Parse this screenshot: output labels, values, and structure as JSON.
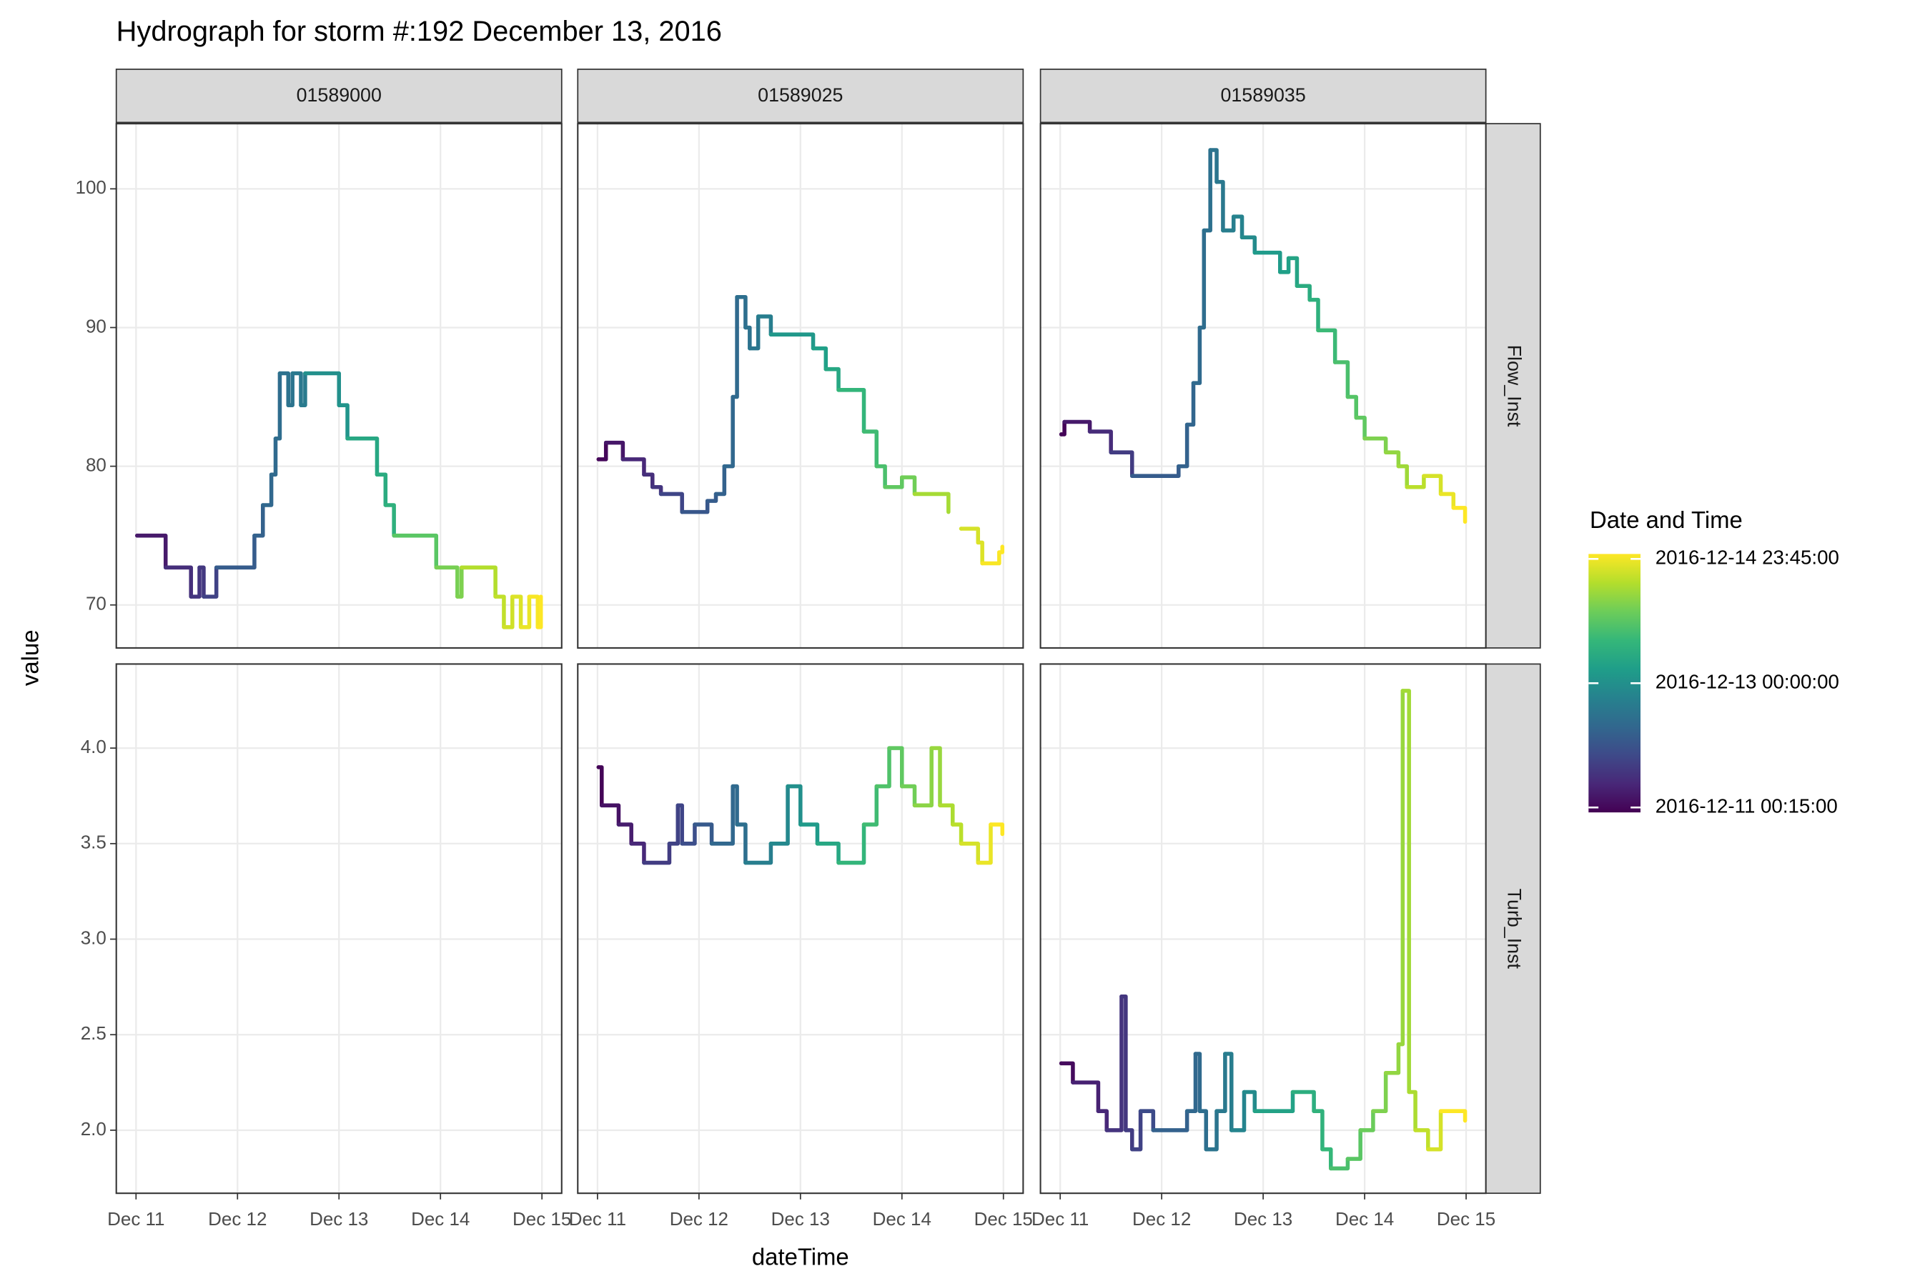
{
  "chart_data": {
    "type": "line",
    "title": "Hydrograph for storm #:192   December 13, 2016",
    "x_label": "dateTime",
    "y_label": "value",
    "columns": [
      "01589000",
      "01589025",
      "01589035"
    ],
    "rows": [
      {
        "name": "Flow_Inst",
        "ylim": [
          66.9,
          104.7
        ],
        "yticks": [
          70,
          80,
          90,
          100
        ]
      },
      {
        "name": "Turb_Inst",
        "ylim": [
          1.67,
          4.44
        ],
        "yticks": [
          {
            "value": 2,
            "label": "2.0"
          },
          2.5,
          {
            "value": 3,
            "label": "3.0"
          },
          3.5,
          {
            "value": 4,
            "label": "4.0"
          }
        ]
      }
    ],
    "xlim": [
      "2016-12-10 19:20",
      "2016-12-15 04:40"
    ],
    "xticks": [
      {
        "value": "2016-12-11 00:00",
        "label": "Dec 11"
      },
      {
        "value": "2016-12-12 00:00",
        "label": "Dec 12"
      },
      {
        "value": "2016-12-13 00:00",
        "label": "Dec 13"
      },
      {
        "value": "2016-12-14 00:00",
        "label": "Dec 14"
      },
      {
        "value": "2016-12-15 00:00",
        "label": "Dec 15"
      }
    ],
    "grid": true,
    "color_scale": {
      "title": "Date and Time",
      "colors": [
        "#440154",
        "#482878",
        "#3E4A89",
        "#31688E",
        "#26828E",
        "#1F9E89",
        "#35B779",
        "#6DCD59",
        "#B4DE2C",
        "#FDE725"
      ],
      "limits": [
        "2016-12-11 00:15:00",
        "2016-12-14 23:45:00"
      ],
      "ticks": [
        "2016-12-11 00:15:00",
        "2016-12-13 00:00:00",
        "2016-12-14 23:45:00"
      ]
    },
    "panels": [
      {
        "x": [
          "2016-12-11 00:15",
          "2016-12-11 07:00",
          "2016-12-11 13:00",
          "2016-12-11 15:00",
          "2016-12-11 16:00",
          "2016-12-11 19:00",
          "2016-12-12 04:00",
          "2016-12-12 06:00",
          "2016-12-12 08:00",
          "2016-12-12 09:00",
          "2016-12-12 10:00",
          "2016-12-12 12:00",
          "2016-12-12 13:00",
          "2016-12-12 15:00",
          "2016-12-12 16:00",
          "2016-12-13 00:00",
          "2016-12-13 02:00",
          "2016-12-13 09:00",
          "2016-12-13 11:00",
          "2016-12-13 13:00",
          "2016-12-13 23:00",
          "2016-12-14 04:00",
          "2016-12-14 05:00",
          "2016-12-14 13:00",
          "2016-12-14 15:00",
          "2016-12-14 17:00",
          "2016-12-14 19:00",
          "2016-12-14 21:00",
          "2016-12-14 23:00",
          "2016-12-14 23:45"
        ],
        "values": [
          75,
          72.7,
          70.6,
          72.7,
          70.6,
          72.7,
          75,
          77.2,
          79.4,
          82,
          86.7,
          84.4,
          86.7,
          84.4,
          86.7,
          84.4,
          82,
          79.4,
          77.2,
          75,
          72.7,
          70.6,
          72.7,
          70.6,
          68.4,
          70.6,
          68.4,
          70.6,
          68.4,
          70.6
        ]
      },
      {
        "x": [
          "2016-12-11 00:15",
          "2016-12-11 02:00",
          "2016-12-11 06:00",
          "2016-12-11 11:00",
          "2016-12-11 13:00",
          "2016-12-11 15:00",
          "2016-12-11 20:00",
          "2016-12-12 02:00",
          "2016-12-12 04:00",
          "2016-12-12 06:00",
          "2016-12-12 08:00",
          "2016-12-12 09:00",
          "2016-12-12 11:00",
          "2016-12-12 12:00",
          "2016-12-12 14:00",
          "2016-12-12 17:00",
          "2016-12-13 03:00",
          "2016-12-13 06:00",
          "2016-12-13 09:00",
          "2016-12-13 15:00",
          "2016-12-13 18:00",
          "2016-12-13 20:00",
          "2016-12-14 00:00",
          "2016-12-14 03:00",
          "2016-12-14 11:00",
          "2016-12-14 12:30",
          "2016-12-14 14:00",
          "2016-12-14 18:00",
          "2016-12-14 19:00",
          "2016-12-14 23:00",
          "2016-12-14 23:45"
        ],
        "values": [
          80.5,
          81.7,
          80.5,
          79.4,
          78.5,
          78,
          76.7,
          77.5,
          78,
          80,
          85,
          92.2,
          90,
          88.5,
          90.8,
          89.5,
          88.5,
          87,
          85.5,
          82.5,
          80,
          78.5,
          79.2,
          78,
          76.7,
          null,
          75.5,
          74.5,
          73,
          73.8,
          74.2
        ]
      },
      {
        "x": [
          "2016-12-11 00:15",
          "2016-12-11 01:00",
          "2016-12-11 07:00",
          "2016-12-11 12:00",
          "2016-12-11 17:00",
          "2016-12-12 04:00",
          "2016-12-12 06:00",
          "2016-12-12 07:30",
          "2016-12-12 09:00",
          "2016-12-12 10:00",
          "2016-12-12 11:30",
          "2016-12-12 13:00",
          "2016-12-12 14:30",
          "2016-12-12 17:00",
          "2016-12-12 19:00",
          "2016-12-12 22:00",
          "2016-12-13 04:00",
          "2016-12-13 06:00",
          "2016-12-13 08:00",
          "2016-12-13 11:00",
          "2016-12-13 13:00",
          "2016-12-13 17:00",
          "2016-12-13 20:00",
          "2016-12-13 22:00",
          "2016-12-14 00:00",
          "2016-12-14 05:00",
          "2016-12-14 08:00",
          "2016-12-14 10:00",
          "2016-12-14 14:00",
          "2016-12-14 18:00",
          "2016-12-14 21:00",
          "2016-12-14 23:45"
        ],
        "values": [
          82.3,
          83.2,
          82.5,
          81,
          79.3,
          80,
          83,
          86,
          90,
          97,
          102.8,
          100.5,
          97,
          98,
          96.5,
          95.4,
          94,
          95,
          93,
          92,
          89.8,
          87.5,
          85,
          83.5,
          82,
          81,
          80,
          78.5,
          79.3,
          78,
          77,
          76
        ]
      },
      {
        "x": [],
        "values": []
      },
      {
        "x": [
          "2016-12-11 00:15",
          "2016-12-11 01:00",
          "2016-12-11 05:00",
          "2016-12-11 08:00",
          "2016-12-11 11:00",
          "2016-12-11 17:00",
          "2016-12-11 19:00",
          "2016-12-11 20:00",
          "2016-12-11 23:00",
          "2016-12-12 03:00",
          "2016-12-12 08:00",
          "2016-12-12 09:00",
          "2016-12-12 11:00",
          "2016-12-12 17:00",
          "2016-12-12 21:00",
          "2016-12-13 00:00",
          "2016-12-13 04:00",
          "2016-12-13 09:00",
          "2016-12-13 15:00",
          "2016-12-13 18:00",
          "2016-12-13 21:00",
          "2016-12-14 00:00",
          "2016-12-14 03:00",
          "2016-12-14 07:00",
          "2016-12-14 09:00",
          "2016-12-14 12:00",
          "2016-12-14 14:00",
          "2016-12-14 18:00",
          "2016-12-14 21:00",
          "2016-12-14 23:45"
        ],
        "values": [
          3.9,
          3.7,
          3.6,
          3.5,
          3.4,
          3.5,
          3.7,
          3.5,
          3.6,
          3.5,
          3.8,
          3.6,
          3.4,
          3.5,
          3.8,
          3.6,
          3.5,
          3.4,
          3.6,
          3.8,
          4.0,
          3.8,
          3.7,
          4.0,
          3.7,
          3.6,
          3.5,
          3.4,
          3.6,
          3.55
        ]
      },
      {
        "x": [
          "2016-12-11 00:15",
          "2016-12-11 03:00",
          "2016-12-11 09:00",
          "2016-12-11 11:00",
          "2016-12-11 14:30",
          "2016-12-11 15:30",
          "2016-12-11 17:00",
          "2016-12-11 19:00",
          "2016-12-11 22:00",
          "2016-12-12 06:00",
          "2016-12-12 08:00",
          "2016-12-12 09:00",
          "2016-12-12 10:30",
          "2016-12-12 13:00",
          "2016-12-12 15:00",
          "2016-12-12 16:30",
          "2016-12-12 19:30",
          "2016-12-12 22:00",
          "2016-12-13 07:00",
          "2016-12-13 12:00",
          "2016-12-13 14:00",
          "2016-12-13 16:00",
          "2016-12-13 20:00",
          "2016-12-13 23:00",
          "2016-12-14 02:00",
          "2016-12-14 05:00",
          "2016-12-14 08:00",
          "2016-12-14 09:00",
          "2016-12-14 10:30",
          "2016-12-14 12:00",
          "2016-12-14 15:00",
          "2016-12-14 18:00",
          "2016-12-14 23:45"
        ],
        "values": [
          2.35,
          2.25,
          2.1,
          2.0,
          2.7,
          2.0,
          1.9,
          2.1,
          2.0,
          2.1,
          2.4,
          2.1,
          1.9,
          2.1,
          2.4,
          2.0,
          2.2,
          2.1,
          2.2,
          2.1,
          1.9,
          1.8,
          1.85,
          2.0,
          2.1,
          2.3,
          2.45,
          4.3,
          2.2,
          2.0,
          1.9,
          2.1,
          2.05
        ]
      }
    ]
  }
}
